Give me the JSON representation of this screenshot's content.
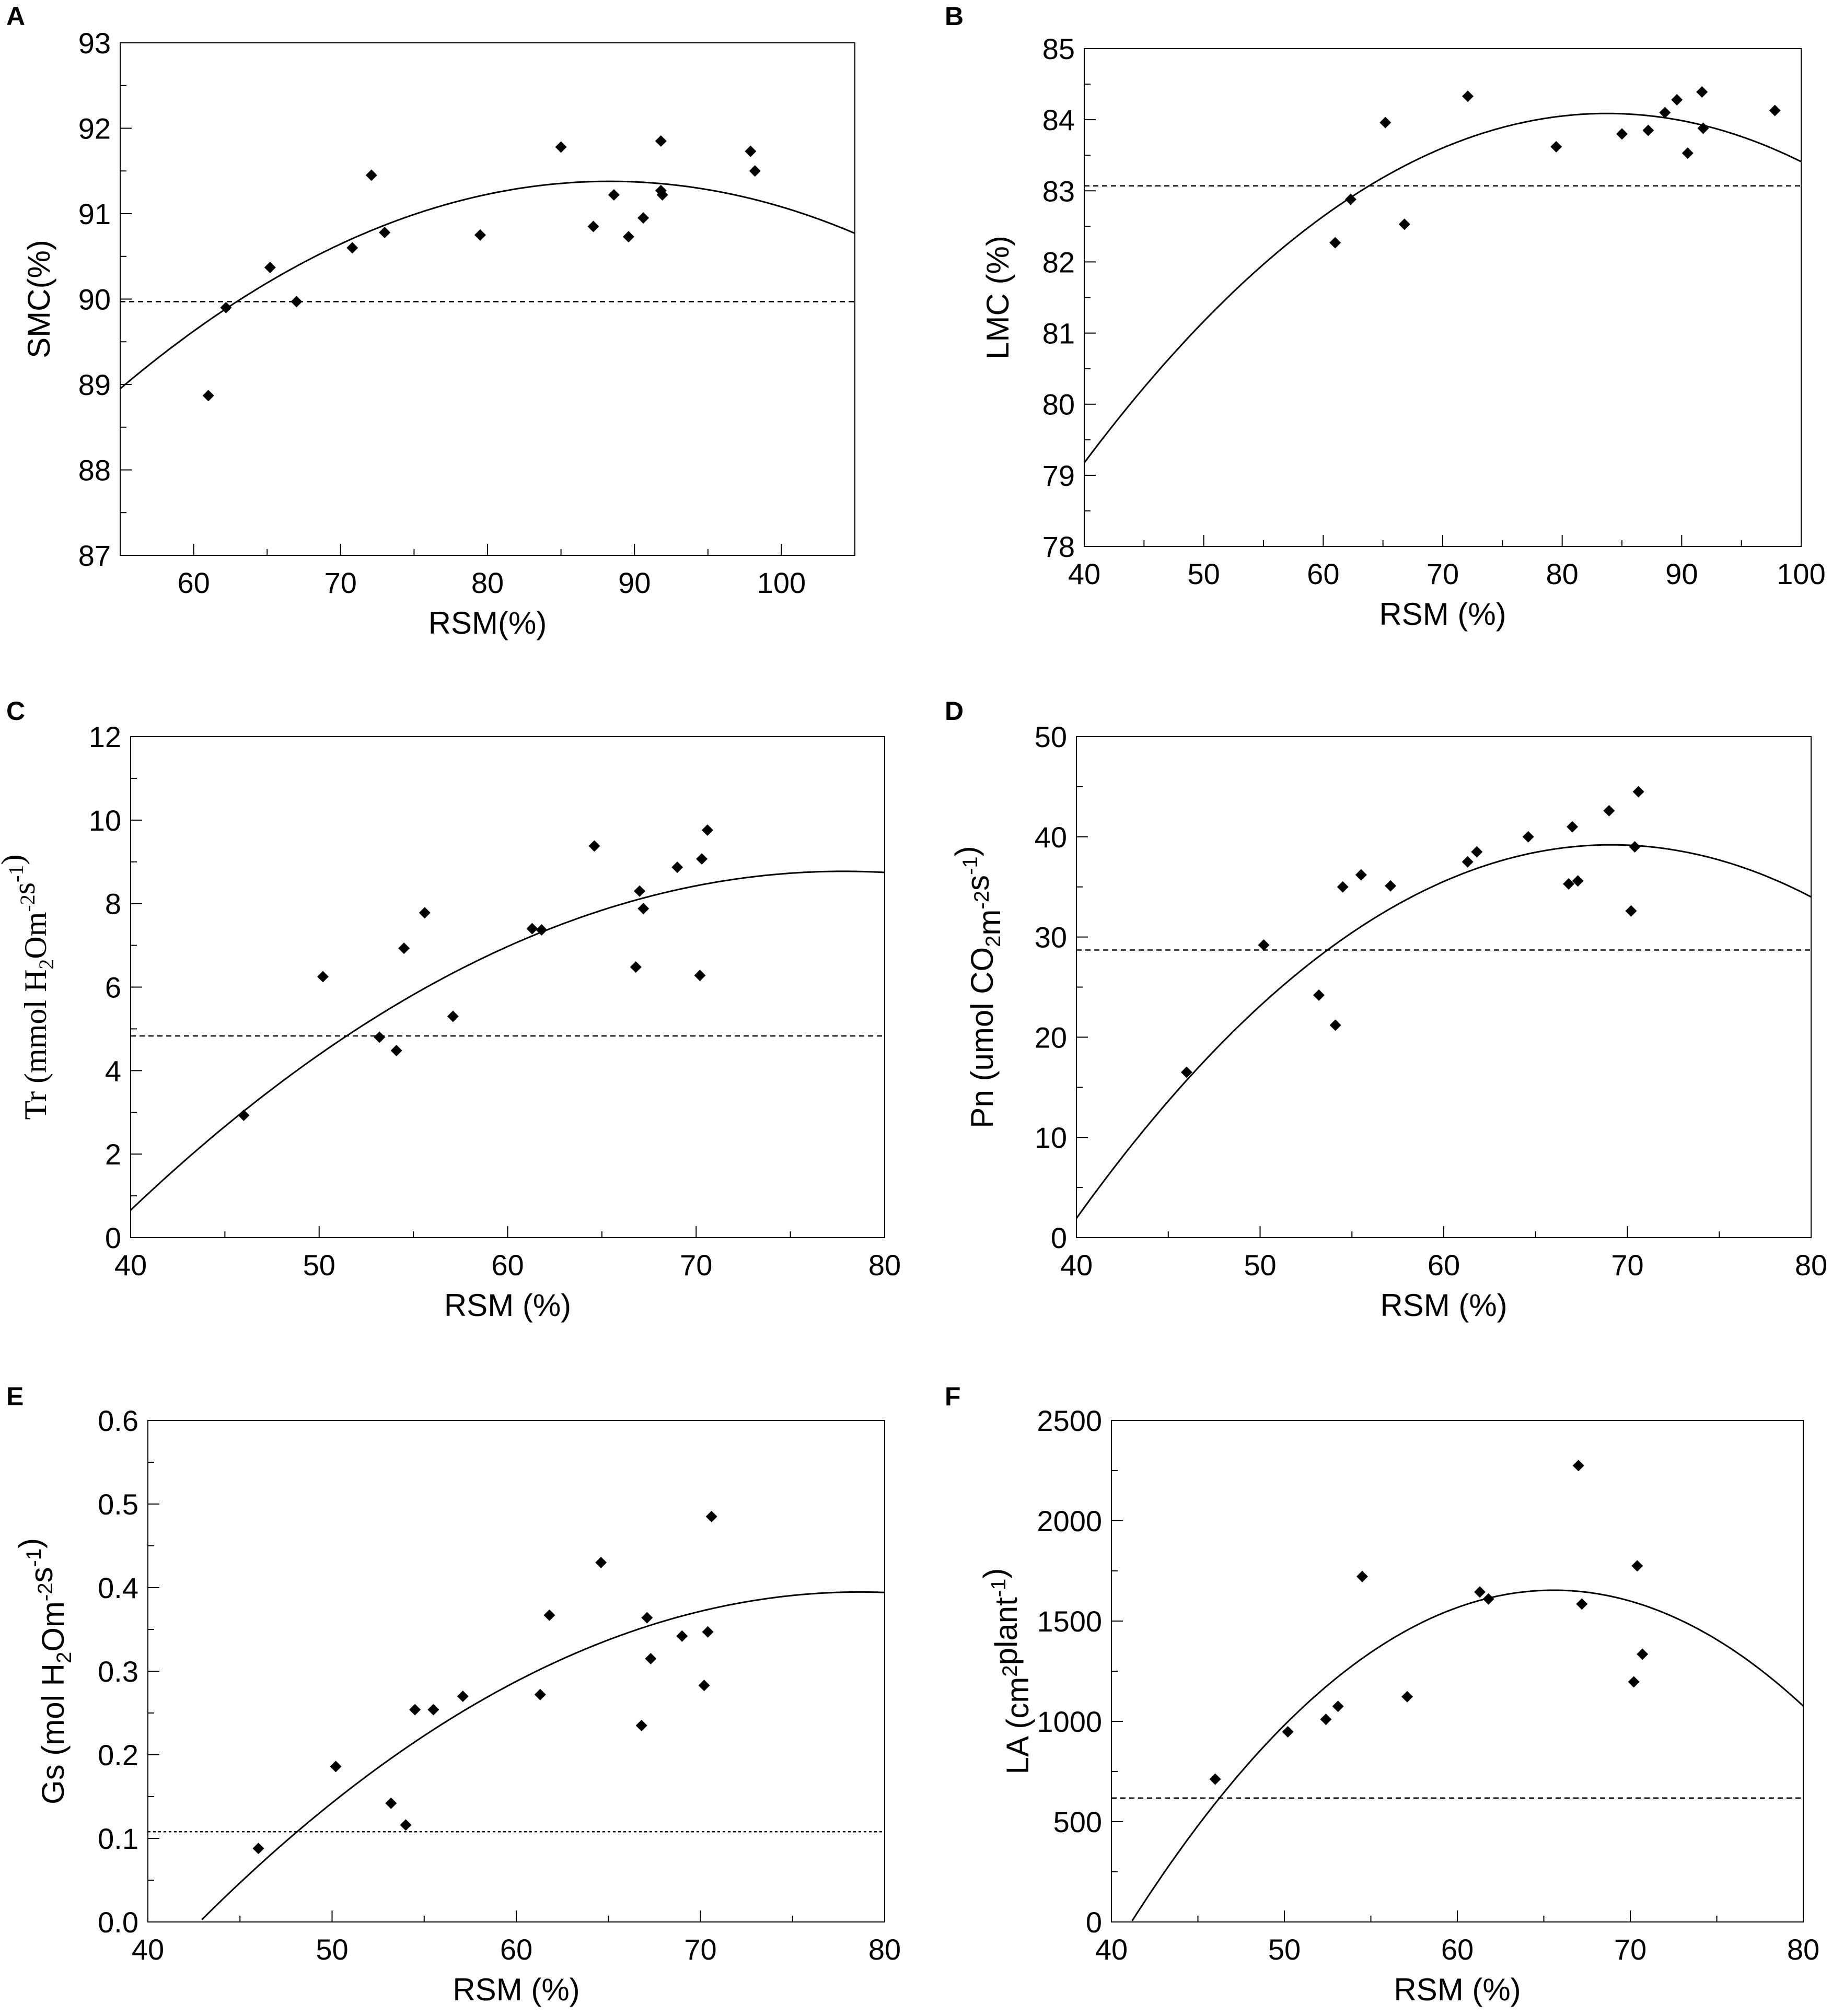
{
  "chart_data": [
    {
      "type": "scatter",
      "panel": "A",
      "xlabel": "RSM(%)",
      "ylabel": "SMC(%)",
      "xlim": [
        55,
        105
      ],
      "ylim": [
        87,
        93
      ],
      "xticks": [
        60,
        70,
        80,
        90,
        100
      ],
      "yticks": [
        87,
        88,
        89,
        90,
        91,
        92,
        93
      ],
      "points": [
        [
          61.0,
          88.87
        ],
        [
          62.2,
          89.9
        ],
        [
          65.2,
          90.37
        ],
        [
          67.0,
          89.97
        ],
        [
          70.8,
          90.6
        ],
        [
          72.1,
          91.45
        ],
        [
          73.0,
          90.78
        ],
        [
          79.5,
          90.75
        ],
        [
          85.0,
          91.78
        ],
        [
          87.2,
          90.85
        ],
        [
          88.6,
          91.22
        ],
        [
          89.6,
          90.73
        ],
        [
          90.6,
          90.95
        ],
        [
          91.8,
          91.85
        ],
        [
          91.8,
          91.27
        ],
        [
          91.9,
          91.22
        ],
        [
          97.9,
          91.73
        ],
        [
          98.2,
          91.5
        ]
      ],
      "fit": [
        -0.002187,
        0.3863,
        74.32
      ],
      "hline": 89.97
    },
    {
      "type": "scatter",
      "panel": "B",
      "xlabel": "RSM (%)",
      "ylabel": "LMC (%)",
      "xlim": [
        40,
        100
      ],
      "ylim": [
        78,
        85
      ],
      "xticks": [
        40,
        50,
        60,
        70,
        80,
        90,
        100
      ],
      "yticks": [
        78,
        79,
        80,
        81,
        82,
        83,
        84,
        85
      ],
      "points": [
        [
          61.0,
          82.27
        ],
        [
          62.3,
          82.88
        ],
        [
          65.2,
          83.96
        ],
        [
          66.8,
          82.53
        ],
        [
          72.1,
          84.33
        ],
        [
          79.5,
          83.62
        ],
        [
          85.0,
          83.8
        ],
        [
          87.2,
          83.85
        ],
        [
          88.6,
          84.1
        ],
        [
          89.6,
          84.28
        ],
        [
          90.5,
          83.53
        ],
        [
          91.7,
          84.39
        ],
        [
          91.8,
          83.88
        ],
        [
          97.8,
          84.13
        ]
      ],
      "fit": [
        -0.002566,
        0.4298,
        66.09
      ],
      "hline": 83.07
    },
    {
      "type": "scatter",
      "panel": "C",
      "xlabel": "RSM (%)",
      "ylabel": "Tr (mmol H2Om-2s-1)",
      "xlim": [
        40,
        80
      ],
      "ylim": [
        0,
        12
      ],
      "xticks": [
        40,
        50,
        60,
        70,
        80
      ],
      "yticks": [
        0,
        2,
        4,
        6,
        8,
        10,
        12
      ],
      "points": [
        [
          46.0,
          2.93
        ],
        [
          50.2,
          6.25
        ],
        [
          53.2,
          4.8
        ],
        [
          54.1,
          4.48
        ],
        [
          54.5,
          6.93
        ],
        [
          55.6,
          7.78
        ],
        [
          57.1,
          5.3
        ],
        [
          61.3,
          7.4
        ],
        [
          61.8,
          7.37
        ],
        [
          64.6,
          9.38
        ],
        [
          66.8,
          6.48
        ],
        [
          67.0,
          8.3
        ],
        [
          67.2,
          7.88
        ],
        [
          69.0,
          8.87
        ],
        [
          70.2,
          6.28
        ],
        [
          70.3,
          9.07
        ],
        [
          70.6,
          9.76
        ]
      ],
      "fit": [
        -0.005675,
        0.8832,
        -25.59
      ],
      "hline": 4.83
    },
    {
      "type": "scatter",
      "panel": "D",
      "xlabel": "RSM (%)",
      "ylabel": "Pn (umol CO2m-2s-1)",
      "xlim": [
        40,
        80
      ],
      "ylim": [
        0,
        50
      ],
      "xticks": [
        40,
        50,
        60,
        70,
        80
      ],
      "yticks": [
        0,
        10,
        20,
        30,
        40,
        50
      ],
      "points": [
        [
          46.0,
          16.5
        ],
        [
          50.2,
          29.2
        ],
        [
          53.2,
          24.2
        ],
        [
          54.1,
          21.2
        ],
        [
          54.5,
          35.0
        ],
        [
          55.5,
          36.2
        ],
        [
          57.1,
          35.1
        ],
        [
          61.3,
          37.5
        ],
        [
          61.8,
          38.5
        ],
        [
          64.6,
          40.0
        ],
        [
          66.8,
          35.3
        ],
        [
          67.0,
          41.0
        ],
        [
          67.3,
          35.6
        ],
        [
          69.0,
          42.6
        ],
        [
          70.2,
          32.6
        ],
        [
          70.4,
          39.0
        ],
        [
          70.6,
          44.5
        ]
      ],
      "fit": [
        -0.04395,
        6.076,
        -170.8
      ],
      "hline": 28.7
    },
    {
      "type": "scatter",
      "panel": "E",
      "xlabel": "RSM (%)",
      "ylabel": "Gs (mol H2Om-2s-1)",
      "xlim": [
        40,
        80
      ],
      "ylim": [
        0.0,
        0.6
      ],
      "xticks": [
        40,
        50,
        60,
        70,
        80
      ],
      "yticks": [
        0.0,
        0.1,
        0.2,
        0.3,
        0.4,
        0.5,
        0.6
      ],
      "points": [
        [
          46.0,
          0.088
        ],
        [
          50.2,
          0.186
        ],
        [
          53.2,
          0.142
        ],
        [
          54.0,
          0.116
        ],
        [
          54.5,
          0.254
        ],
        [
          55.5,
          0.254
        ],
        [
          57.1,
          0.27
        ],
        [
          61.3,
          0.272
        ],
        [
          61.8,
          0.367
        ],
        [
          64.6,
          0.43
        ],
        [
          66.8,
          0.235
        ],
        [
          67.1,
          0.364
        ],
        [
          67.3,
          0.315
        ],
        [
          69.0,
          0.342
        ],
        [
          70.2,
          0.283
        ],
        [
          70.4,
          0.347
        ],
        [
          70.6,
          0.485
        ]
      ],
      "fit": [
        -0.000307,
        0.0483,
        -1.505
      ],
      "hline": 0.108
    },
    {
      "type": "scatter",
      "panel": "F",
      "xlabel": "RSM (%)",
      "ylabel": "LA (cm2plant-1)",
      "xlim": [
        40,
        80
      ],
      "ylim": [
        0,
        2500
      ],
      "xticks": [
        40,
        50,
        60,
        70,
        80
      ],
      "yticks": [
        0,
        500,
        1000,
        1500,
        2000,
        2500
      ],
      "points": [
        [
          46.0,
          712
        ],
        [
          50.2,
          948
        ],
        [
          52.4,
          1010
        ],
        [
          53.1,
          1075
        ],
        [
          54.5,
          1722
        ],
        [
          57.1,
          1123
        ],
        [
          61.3,
          1645
        ],
        [
          61.8,
          1610
        ],
        [
          67.0,
          2275
        ],
        [
          67.2,
          1585
        ],
        [
          70.2,
          1197
        ],
        [
          70.4,
          1775
        ],
        [
          70.7,
          1335
        ]
      ],
      "fit": [
        -2.774,
        363.8,
        -10274
      ],
      "hline": 618
    }
  ]
}
